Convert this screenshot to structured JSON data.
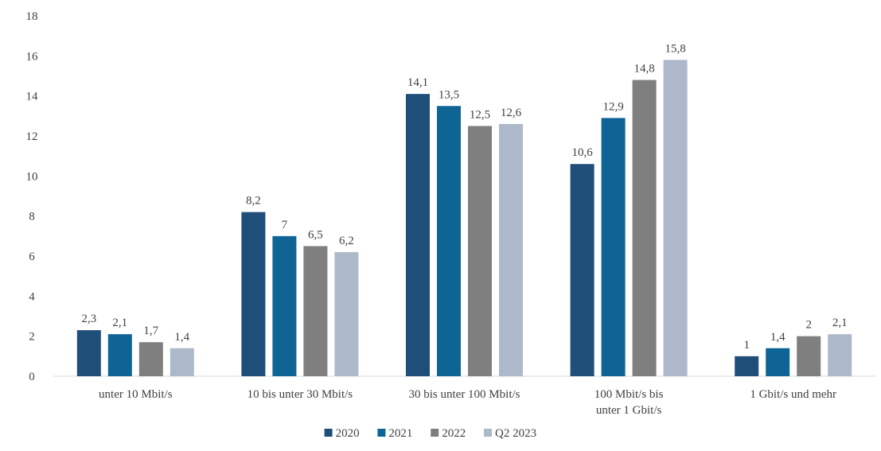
{
  "chart_data": {
    "type": "bar",
    "title": "",
    "xlabel": "",
    "ylabel": "",
    "ylim": [
      0,
      18
    ],
    "yticks": [
      0,
      2,
      4,
      6,
      8,
      10,
      12,
      14,
      16,
      18
    ],
    "grid": false,
    "legend_position": "bottom",
    "categories": [
      [
        "unter 10 Mbit/s"
      ],
      [
        "10 bis unter 30 Mbit/s"
      ],
      [
        "30 bis unter 100 Mbit/s"
      ],
      [
        "100 Mbit/s bis",
        "unter 1 Gbit/s"
      ],
      [
        "1 Gbit/s und mehr"
      ]
    ],
    "series": [
      {
        "name": "2020",
        "color": "#1f4e79",
        "values": [
          2.3,
          8.2,
          14.1,
          10.6,
          1
        ],
        "labels": [
          "2,3",
          "8,2",
          "14,1",
          "10,6",
          "1"
        ]
      },
      {
        "name": "2021",
        "color": "#0f6496",
        "values": [
          2.1,
          7,
          13.5,
          12.9,
          1.4
        ],
        "labels": [
          "2,1",
          "7",
          "13,5",
          "12,9",
          "1,4"
        ]
      },
      {
        "name": "2022",
        "color": "#7f7f7f",
        "values": [
          1.7,
          6.5,
          12.5,
          14.8,
          2
        ],
        "labels": [
          "1,7",
          "6,5",
          "12,5",
          "14,8",
          "2"
        ]
      },
      {
        "name": "Q2 2023",
        "color": "#adb9ca",
        "values": [
          1.4,
          6.2,
          12.6,
          15.8,
          2.1
        ],
        "labels": [
          "1,4",
          "6,2",
          "12,6",
          "15,8",
          "2,1"
        ]
      }
    ]
  }
}
